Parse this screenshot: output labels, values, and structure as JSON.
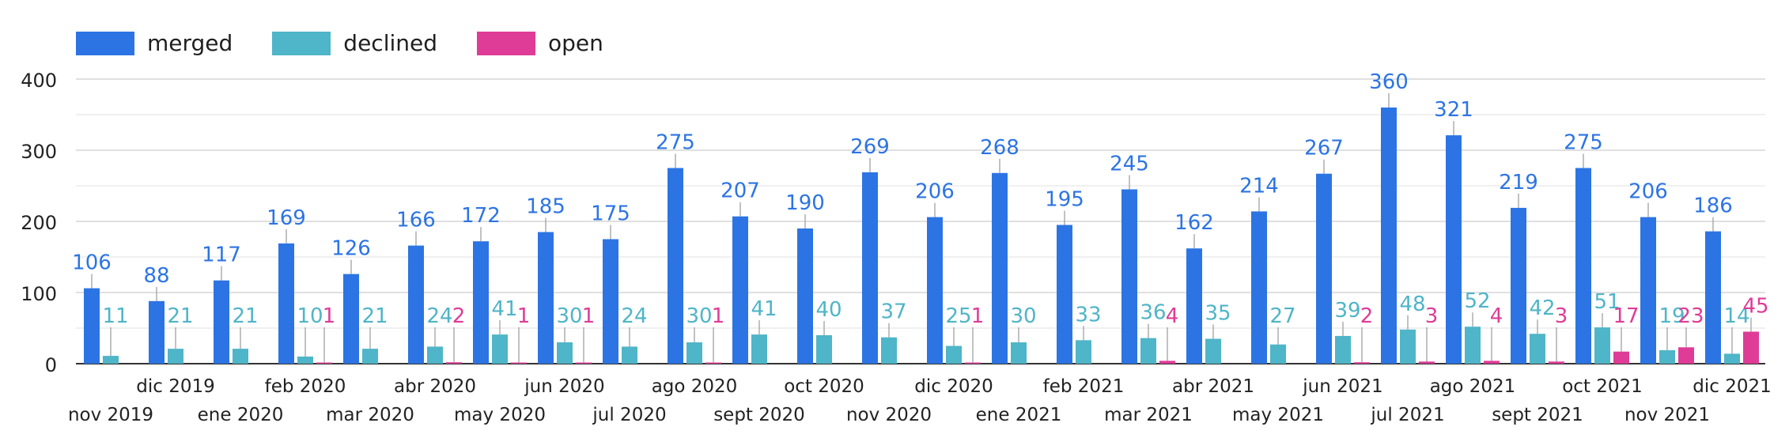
{
  "colors": {
    "merged": "#2c74e3",
    "declined": "#4fb5c8",
    "open": "#de3c97"
  },
  "chart_data": {
    "type": "bar",
    "title": "",
    "xlabel": "",
    "ylabel": "",
    "ylim": [
      0,
      400
    ],
    "yticks": [
      0,
      100,
      200,
      300,
      400
    ],
    "grid": true,
    "legend_position": "top-left",
    "categories": [
      "nov 2019",
      "dic 2019",
      "ene 2020",
      "feb 2020",
      "mar 2020",
      "abr 2020",
      "may 2020",
      "jun 2020",
      "jul 2020",
      "ago 2020",
      "sept 2020",
      "oct 2020",
      "nov 2020",
      "dic 2020",
      "ene 2021",
      "feb 2021",
      "mar 2021",
      "abr 2021",
      "may 2021",
      "jun 2021",
      "jul 2021",
      "ago 2021",
      "sept 2021",
      "oct 2021",
      "nov 2021",
      "dic 2021"
    ],
    "series": [
      {
        "name": "merged",
        "color": "#2c74e3",
        "values": [
          106,
          88,
          117,
          169,
          126,
          166,
          172,
          185,
          175,
          275,
          207,
          190,
          269,
          206,
          268,
          195,
          245,
          162,
          214,
          267,
          360,
          321,
          219,
          275,
          206,
          186
        ]
      },
      {
        "name": "declined",
        "color": "#4fb5c8",
        "values": [
          11,
          21,
          21,
          10,
          21,
          24,
          41,
          30,
          24,
          30,
          41,
          40,
          37,
          25,
          30,
          33,
          36,
          35,
          27,
          39,
          48,
          52,
          42,
          51,
          19,
          14
        ]
      },
      {
        "name": "open",
        "color": "#de3c97",
        "values": [
          null,
          null,
          null,
          1,
          null,
          2,
          1,
          1,
          null,
          1,
          null,
          null,
          null,
          1,
          null,
          null,
          4,
          null,
          null,
          2,
          3,
          4,
          3,
          17,
          23,
          45
        ]
      }
    ]
  }
}
